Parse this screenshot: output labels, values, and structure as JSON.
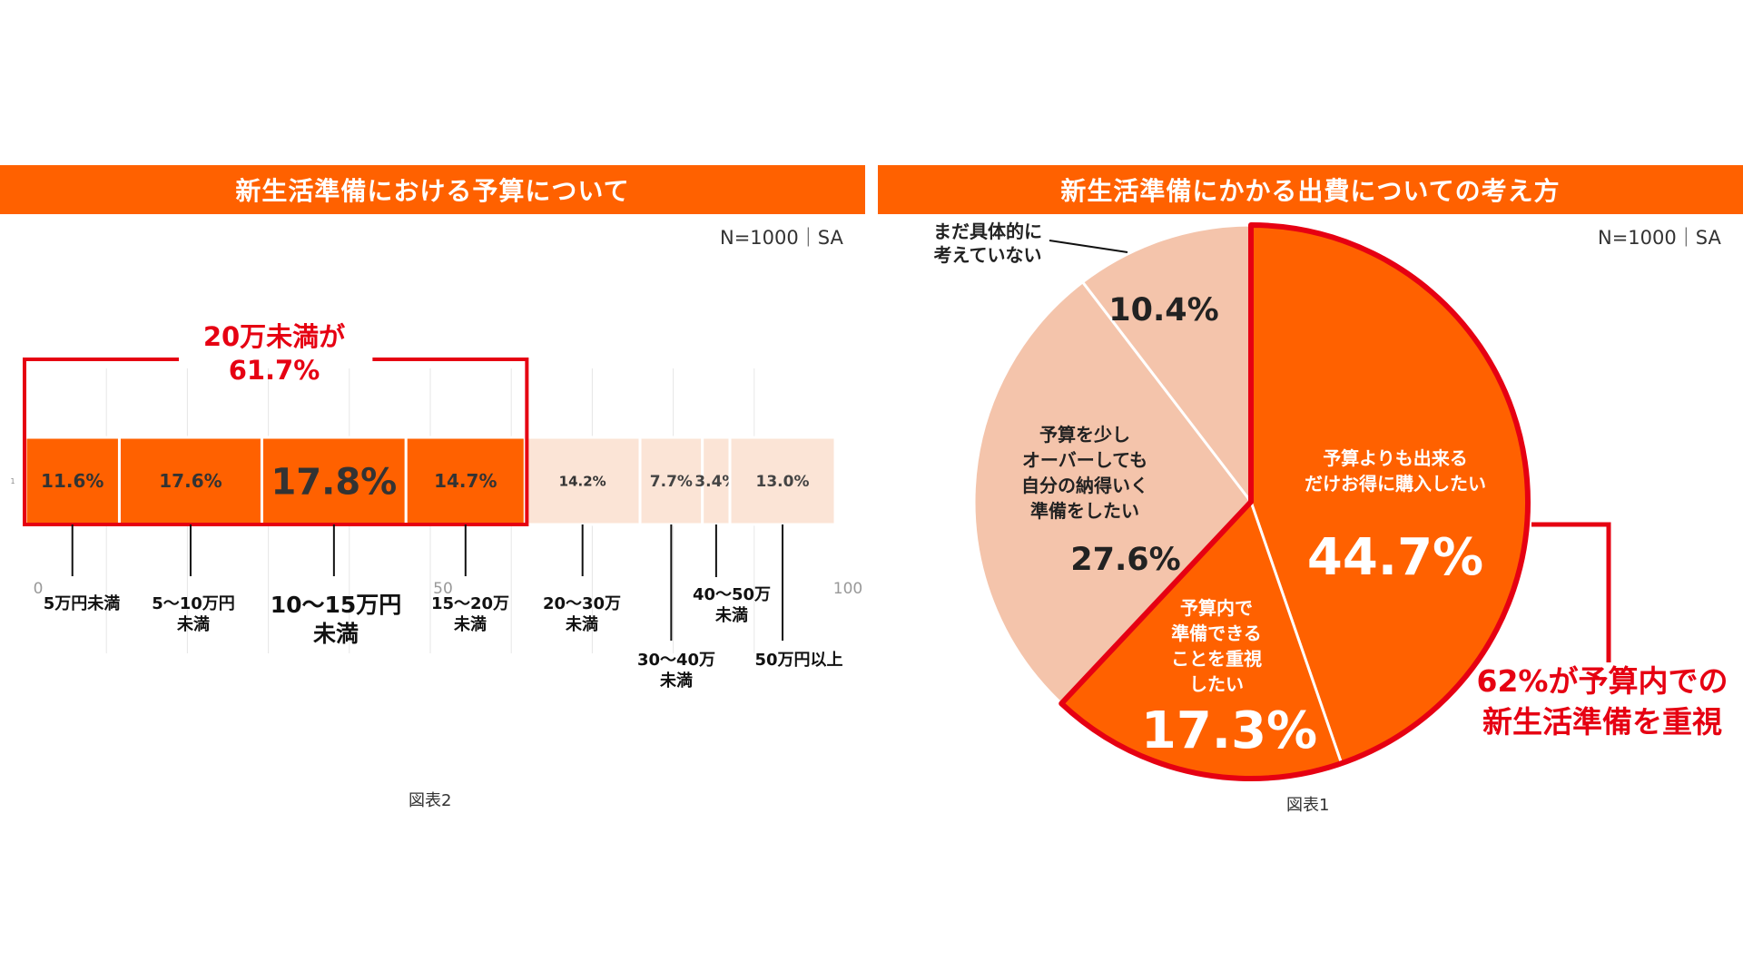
{
  "chart_data": [
    {
      "type": "bar",
      "orientation": "horizontal-stacked",
      "title": "新生活準備における予算について",
      "sample_note": "N=1000｜SA",
      "caption": "図表2",
      "row_label": "1",
      "xlim": [
        0,
        100
      ],
      "ticks": [
        "0",
        "50",
        "100"
      ],
      "categories": [
        "5万円未満",
        "5〜10万円未満",
        "10〜15万円未満",
        "15〜20万未満",
        "20〜30万未満",
        "30〜40万未満",
        "40〜50万未満",
        "50万円以上"
      ],
      "values": [
        11.6,
        17.6,
        17.8,
        14.7,
        14.2,
        7.7,
        3.4,
        13.0
      ],
      "value_labels": [
        "11.6%",
        "17.6%",
        "17.8%",
        "14.7%",
        "14.2%",
        "7.7%",
        "3.4%",
        "13.0%"
      ],
      "category_labels": [
        [
          "5万円未満"
        ],
        [
          "5〜10万円",
          "未満"
        ],
        [
          "10〜15万円",
          "未満"
        ],
        [
          "15〜20万",
          "未満"
        ],
        [
          "20〜30万",
          "未満"
        ],
        [
          "30〜40万",
          "未満"
        ],
        [
          "40〜50万",
          "未満"
        ],
        [
          "50万円以上"
        ]
      ],
      "highlighted_count": 4,
      "annotation": [
        "20万未満が",
        "61.7%"
      ],
      "colors": {
        "highlight": "#ff6100",
        "muted": "#fbe4d6",
        "frame": "#e60012"
      }
    },
    {
      "type": "pie",
      "title": "新生活準備にかかる出費についての考え方",
      "sample_note": "N=1000｜SA",
      "caption": "図表1",
      "slices": [
        {
          "label": [
            "予算よりも出来る",
            "だけお得に購入したい"
          ],
          "value": 44.7,
          "value_label": "44.7%",
          "color": "#ff6100"
        },
        {
          "label": [
            "予算内で",
            "準備できる",
            "ことを重視",
            "したい"
          ],
          "value": 17.3,
          "value_label": "17.3%",
          "color": "#ff6100"
        },
        {
          "label": [
            "予算を少し",
            "オーバーしても",
            "自分の納得いく",
            "準備をしたい"
          ],
          "value": 27.6,
          "value_label": "27.6%",
          "color": "#f4c4ab"
        },
        {
          "label": [
            "まだ具体的に",
            "考えていない"
          ],
          "value": 10.4,
          "value_label": "10.4%",
          "color": "#f4c4ab"
        }
      ],
      "annotation": [
        "62%が予算内での",
        "新生活準備を重視"
      ],
      "colors": {
        "frame": "#e60012"
      }
    }
  ]
}
